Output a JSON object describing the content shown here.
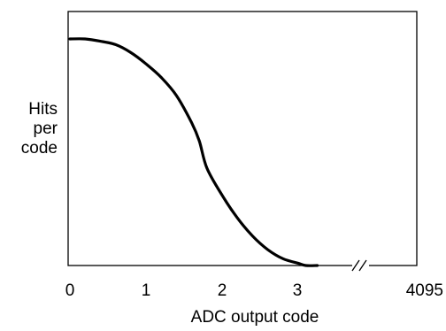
{
  "chart_data": {
    "type": "line",
    "title": "",
    "xlabel": "ADC output code",
    "ylabel_lines": [
      "Hits",
      "per",
      "code"
    ],
    "x_ticks": [
      "0",
      "1",
      "2",
      "3",
      "4095"
    ],
    "axis_break": true,
    "grid": false,
    "line_color": "#000000",
    "series": [
      {
        "x": [
          0.0,
          0.2,
          0.4,
          0.6,
          0.8,
          1.0,
          1.2,
          1.4,
          1.6,
          1.7,
          1.8,
          2.0,
          2.2,
          2.4,
          2.6,
          2.8,
          3.0,
          3.1,
          3.25
        ],
        "y": [
          1.0,
          1.0,
          0.99,
          0.975,
          0.94,
          0.89,
          0.83,
          0.75,
          0.63,
          0.55,
          0.43,
          0.31,
          0.21,
          0.13,
          0.07,
          0.03,
          0.01,
          0.0,
          0.0
        ]
      }
    ]
  }
}
